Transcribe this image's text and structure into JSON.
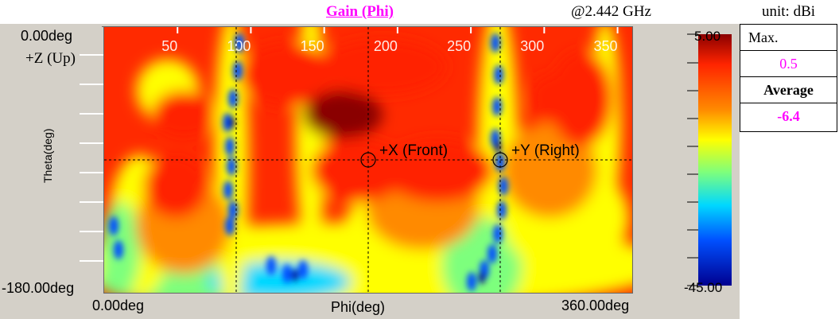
{
  "header": {
    "title": "Gain (Phi)",
    "frequency": "@2.442  GHz",
    "unit": "unit: dBi"
  },
  "stats": {
    "max_label": "Max.",
    "max_value": "0.5",
    "avg_label": "Average",
    "avg_value": "-6.4"
  },
  "axes": {
    "y_top": "0.00deg",
    "y_top_sub": "+Z (Up)",
    "y_bottom": "-180.00deg",
    "y_label": "Theta(deg)",
    "x_left": "0.00deg",
    "x_right": "360.00deg",
    "x_label": "Phi(deg)"
  },
  "markers": {
    "front": "+X (Front)",
    "right": "+Y (Right)"
  },
  "colorbar": {
    "max": "5.00",
    "min": "-45.00"
  },
  "chart_data": {
    "type": "heatmap",
    "title": "Gain (Phi)",
    "xlabel": "Phi(deg)",
    "ylabel": "Theta(deg)",
    "xlim": [
      0,
      360
    ],
    "ylim": [
      -180,
      0
    ],
    "x_ticks": [
      "50",
      "100",
      "150",
      "200",
      "250",
      "300",
      "350"
    ],
    "x_tick_values": [
      50,
      100,
      150,
      200,
      250,
      300,
      350
    ],
    "crosshair_phi": [
      90,
      180,
      270
    ],
    "crosshair_theta": -90,
    "color_scale": {
      "min": -45,
      "max": 5,
      "unit": "dBi"
    },
    "colors": [
      "#00008f",
      "#0050ff",
      "#00d8ff",
      "#7dff7d",
      "#ffff00",
      "#ff8a00",
      "#ff2400",
      "#8a0000"
    ]
  }
}
